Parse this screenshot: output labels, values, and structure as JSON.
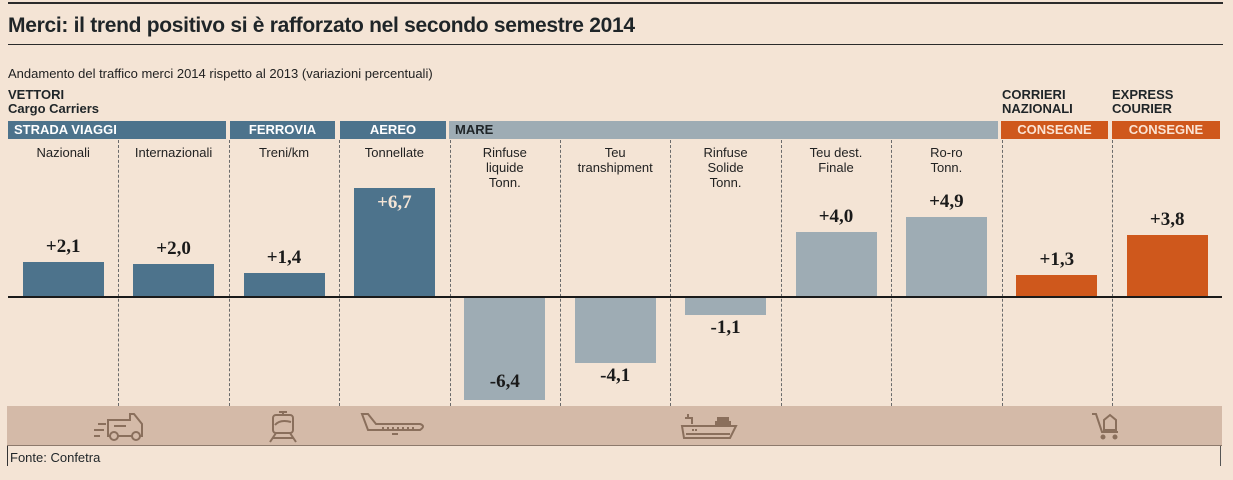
{
  "title": "Merci: il trend positivo si è rafforzato nel secondo semestre 2014",
  "subtitle": "Andamento del traffico merci 2014 rispetto al 2013 (variazioni percentuali)",
  "headers": {
    "vettori": "VETTORI",
    "cargo": "Cargo Carriers",
    "corrieri_1": "CORRIERI",
    "corrieri_2": "NAZIONALI",
    "express_1": "EXPRESS",
    "express_2": "COURIER"
  },
  "bands": {
    "strada": "STRADA VIAGGI",
    "ferrovia": "FERROVIA",
    "aereo": "AEREO",
    "mare": "MARE",
    "consegne_1": "CONSEGNE",
    "consegne_2": "CONSEGNE"
  },
  "colors": {
    "strada_ferrovia_aereo": "#4d738c",
    "mare": "#9eacb4",
    "corrieri": "#cf581c",
    "background": "#f4e4d5",
    "icon_band": "#d4baa8"
  },
  "icons": [
    "truck-icon",
    "train-icon",
    "airplane-icon",
    "ship-icon",
    "cart-icon"
  ],
  "source": "Fonte: Confetra",
  "chart_data": {
    "type": "bar",
    "title": "Merci: il trend positivo si è rafforzato nel secondo semestre 2014",
    "subtitle": "Andamento del traffico merci 2014 rispetto al 2013 (variazioni percentuali)",
    "xlabel": "",
    "ylabel": "variazioni percentuali",
    "grid": false,
    "ylim": [
      -7,
      7
    ],
    "categories": [
      "Nazionali",
      "Internazionali",
      "Treni/km",
      "Tonnellate",
      "Rinfuse liquide Tonn.",
      "Teu transhipment",
      "Rinfuse Solide Tonn.",
      "Teu dest. Finale",
      "Ro-ro Tonn.",
      "Corrieri nazionali consegne",
      "Express courier consegne"
    ],
    "category_lines": [
      [
        "Nazionali"
      ],
      [
        "Internazionali"
      ],
      [
        "Treni/km"
      ],
      [
        "Tonnellate"
      ],
      [
        "Rinfuse",
        "liquide",
        "Tonn."
      ],
      [
        "Teu",
        "transhipment"
      ],
      [
        "Rinfuse",
        "Solide",
        "Tonn."
      ],
      [
        "Teu dest.",
        "Finale"
      ],
      [
        "Ro-ro",
        "Tonn."
      ],
      [
        ""
      ],
      [
        ""
      ]
    ],
    "groups": [
      "Strada viaggi",
      "Strada viaggi",
      "Ferrovia",
      "Aereo",
      "Mare",
      "Mare",
      "Mare",
      "Mare",
      "Mare",
      "Corrieri nazionali",
      "Express courier"
    ],
    "values": [
      2.1,
      2.0,
      1.4,
      6.7,
      -6.4,
      -4.1,
      -1.1,
      4.0,
      4.9,
      1.3,
      3.8
    ],
    "labels": [
      "+2,1",
      "+2,0",
      "+1,4",
      "+6,7",
      "-6,4",
      "-4,1",
      "-1,1",
      "+4,0",
      "+4,9",
      "+1,3",
      "+3,8"
    ]
  }
}
